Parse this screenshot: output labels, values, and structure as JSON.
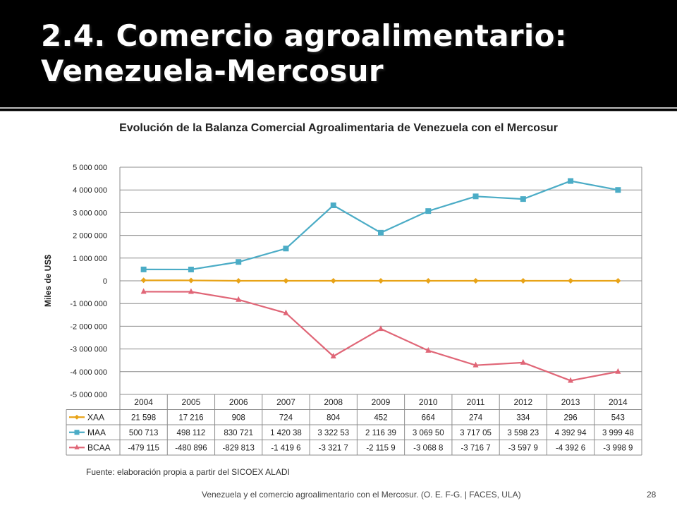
{
  "slide": {
    "title_line1": "2.4. Comercio agroalimentario:",
    "title_line2": "Venezuela-Mercosur",
    "source": "Fuente: elaboración propia a partir del SICOEX ALADI",
    "footer": "Venezuela y el comercio agroalimentario con el Mercosur. (O. E. F-G. | FACES, ULA)",
    "page_number": "28"
  },
  "chart_data": {
    "type": "line",
    "title": "Evolución de la Balanza Comercial Agroalimentaria de Venezuela con el Mercosur",
    "ylabel": "Miles de US$",
    "xlabel": "",
    "ylim": [
      -5000000,
      5000000
    ],
    "y_ticks": [
      5000000,
      4000000,
      3000000,
      2000000,
      1000000,
      0,
      -1000000,
      -2000000,
      -3000000,
      -4000000,
      -5000000
    ],
    "y_tick_labels": [
      "5 000 000",
      "4 000 000",
      "3 000 000",
      "2 000 000",
      "1 000 000",
      "0",
      "-1 000 000",
      "-2 000 000",
      "-3 000 000",
      "-4 000 000",
      "-5 000 000"
    ],
    "grid": true,
    "categories": [
      "2004",
      "2005",
      "2006",
      "2007",
      "2008",
      "2009",
      "2010",
      "2011",
      "2012",
      "2013",
      "2014"
    ],
    "series": [
      {
        "name": "XAA",
        "color": "#e8a317",
        "marker": "diamond",
        "values": [
          21598,
          17216,
          908,
          724,
          804,
          452,
          664,
          274,
          334,
          296,
          543
        ],
        "labels": [
          "21 598",
          "17 216",
          "908",
          "724",
          "804",
          "452",
          "664",
          "274",
          "334",
          "296",
          "543"
        ]
      },
      {
        "name": "MAA",
        "color": "#4bacc6",
        "marker": "square",
        "values": [
          500713,
          498112,
          830721,
          1420380,
          3322530,
          2116390,
          3069500,
          3717050,
          3598230,
          4392940,
          3999480
        ],
        "labels": [
          "500 713",
          "498 112",
          "830 721",
          "1 420 38",
          "3 322 53",
          "2 116 39",
          "3 069 50",
          "3 717 05",
          "3 598 23",
          "4 392 94",
          "3 999 48"
        ]
      },
      {
        "name": "BCAA",
        "color": "#e06677",
        "marker": "triangle",
        "values": [
          -479115,
          -480896,
          -829813,
          -1419600,
          -3321700,
          -2115900,
          -3068800,
          -3716700,
          -3597900,
          -4392600,
          -3998900
        ],
        "labels": [
          "-479 115",
          "-480 896",
          "-829 813",
          "-1 419 6",
          "-3 321 7",
          "-2 115 9",
          "-3 068 8",
          "-3 716 7",
          "-3 597 9",
          "-4 392 6",
          "-3 998 9"
        ]
      }
    ]
  }
}
